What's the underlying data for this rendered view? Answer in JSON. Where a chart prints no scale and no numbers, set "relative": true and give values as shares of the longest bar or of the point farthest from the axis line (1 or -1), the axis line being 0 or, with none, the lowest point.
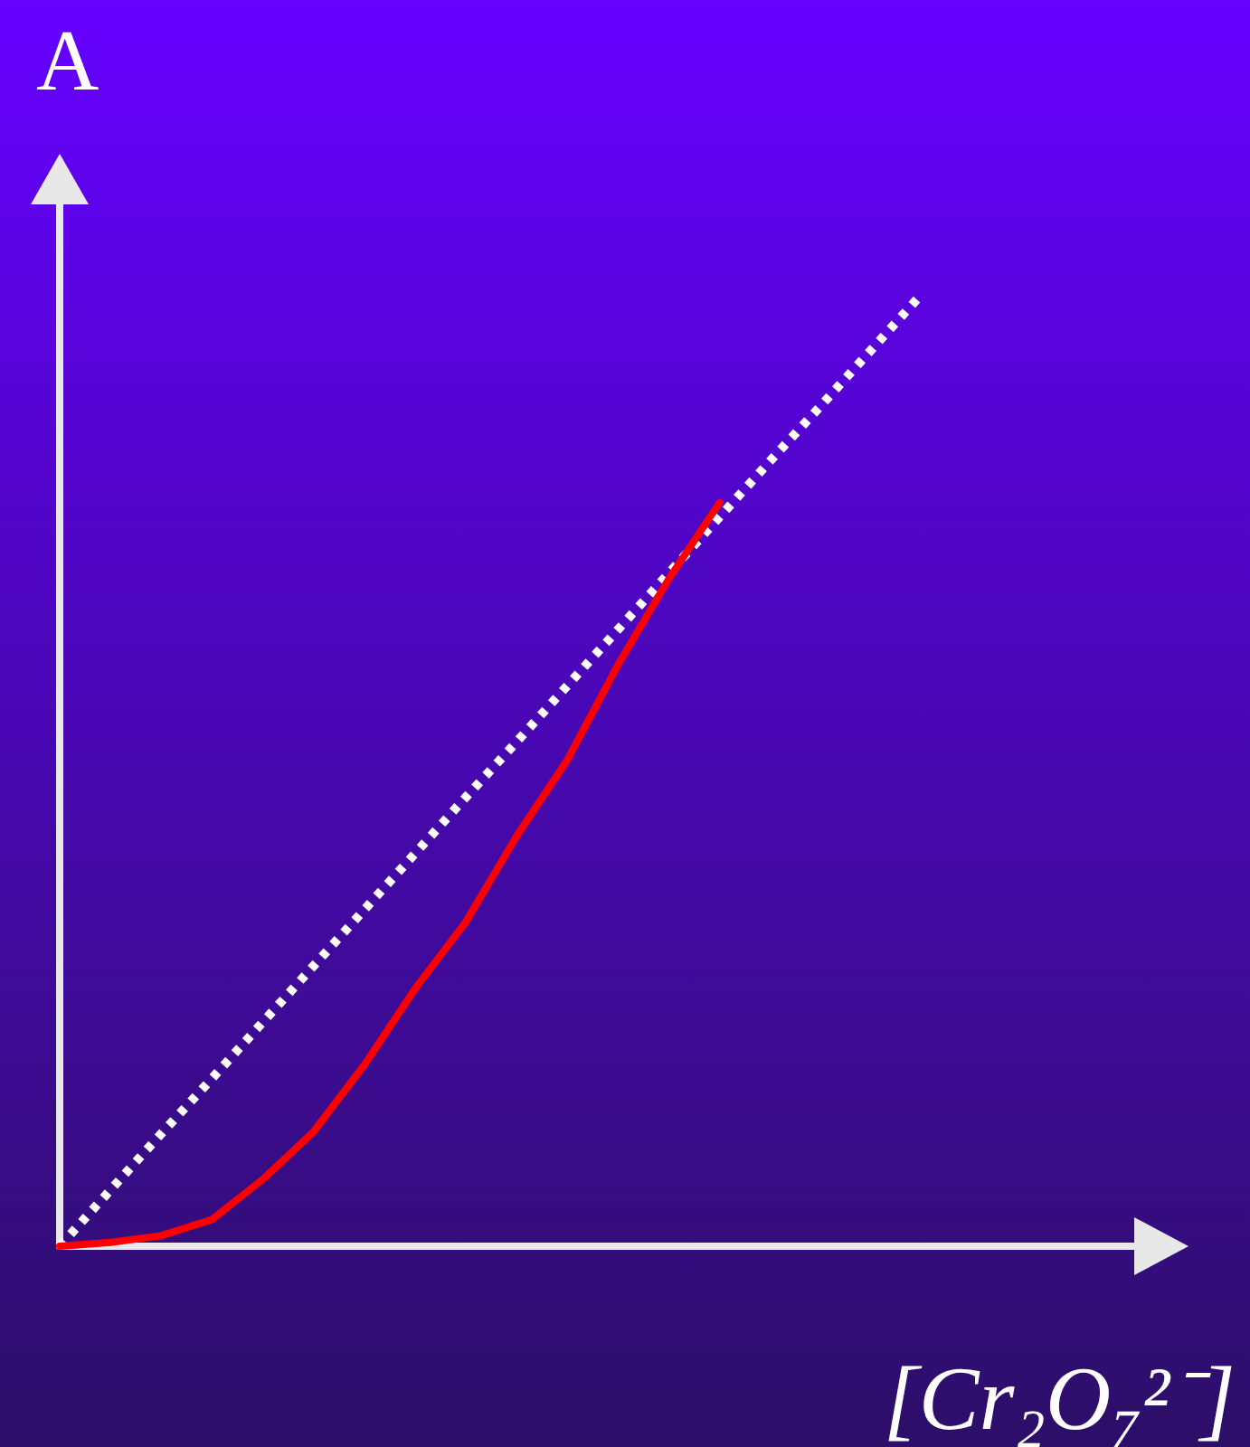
{
  "chart_data": {
    "type": "line",
    "relative": true,
    "xlabel": "[Cr₂O₇²⁻]",
    "ylabel": "A",
    "grid": false,
    "marker": "none",
    "categories": [
      null,
      null,
      null,
      null,
      null,
      null,
      null,
      null,
      null,
      null,
      null,
      null,
      null,
      null,
      null,
      null,
      null,
      null
    ],
    "series": [
      {
        "color": "#ffffff",
        "line_style": "dotted",
        "values": [
          0,
          0.059,
          0.118,
          0.176,
          0.235,
          0.294,
          0.353,
          0.412,
          0.471,
          0.529,
          0.588,
          0.647,
          0.706,
          0.765,
          0.824,
          0.882,
          0.941,
          1
        ]
      },
      {
        "color": "#ff0000",
        "line_style": "solid",
        "values": [
          0,
          0.004,
          0.011,
          0.028,
          0.07,
          0.12,
          0.19,
          0.27,
          0.34,
          0.43,
          0.51,
          0.61,
          0.7,
          0.78,
          null,
          null,
          null,
          null
        ]
      }
    ]
  }
}
